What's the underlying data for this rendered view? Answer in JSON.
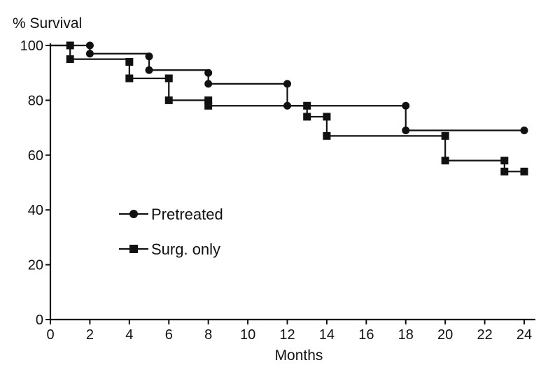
{
  "chart_data": {
    "type": "line",
    "title": "",
    "xlabel": "Months",
    "ylabel": "% Survival",
    "xlim": [
      0,
      24.5
    ],
    "ylim": [
      0,
      100
    ],
    "x_ticks": [
      0,
      2,
      4,
      6,
      8,
      10,
      12,
      14,
      16,
      18,
      20,
      22,
      24
    ],
    "y_ticks": [
      0,
      20,
      40,
      60,
      80,
      100
    ],
    "grid": false,
    "legend_placement": "center-left",
    "step": true,
    "series": [
      {
        "name": "Pretreated",
        "marker": "circle",
        "x": [
          1,
          2,
          2,
          5,
          5,
          8,
          8,
          12,
          12,
          18,
          18,
          24
        ],
        "y": [
          100,
          100,
          97,
          96,
          91,
          90,
          86,
          86,
          78,
          78,
          69,
          69
        ]
      },
      {
        "name": "Surg. only",
        "marker": "square",
        "x": [
          1,
          1,
          4,
          4,
          6,
          6,
          8,
          8,
          13,
          13,
          14,
          14,
          20,
          20,
          23,
          23,
          24
        ],
        "y": [
          100,
          95,
          94,
          88,
          88,
          80,
          80,
          78,
          78,
          74,
          74,
          67,
          67,
          58,
          58,
          54,
          54
        ]
      }
    ]
  }
}
